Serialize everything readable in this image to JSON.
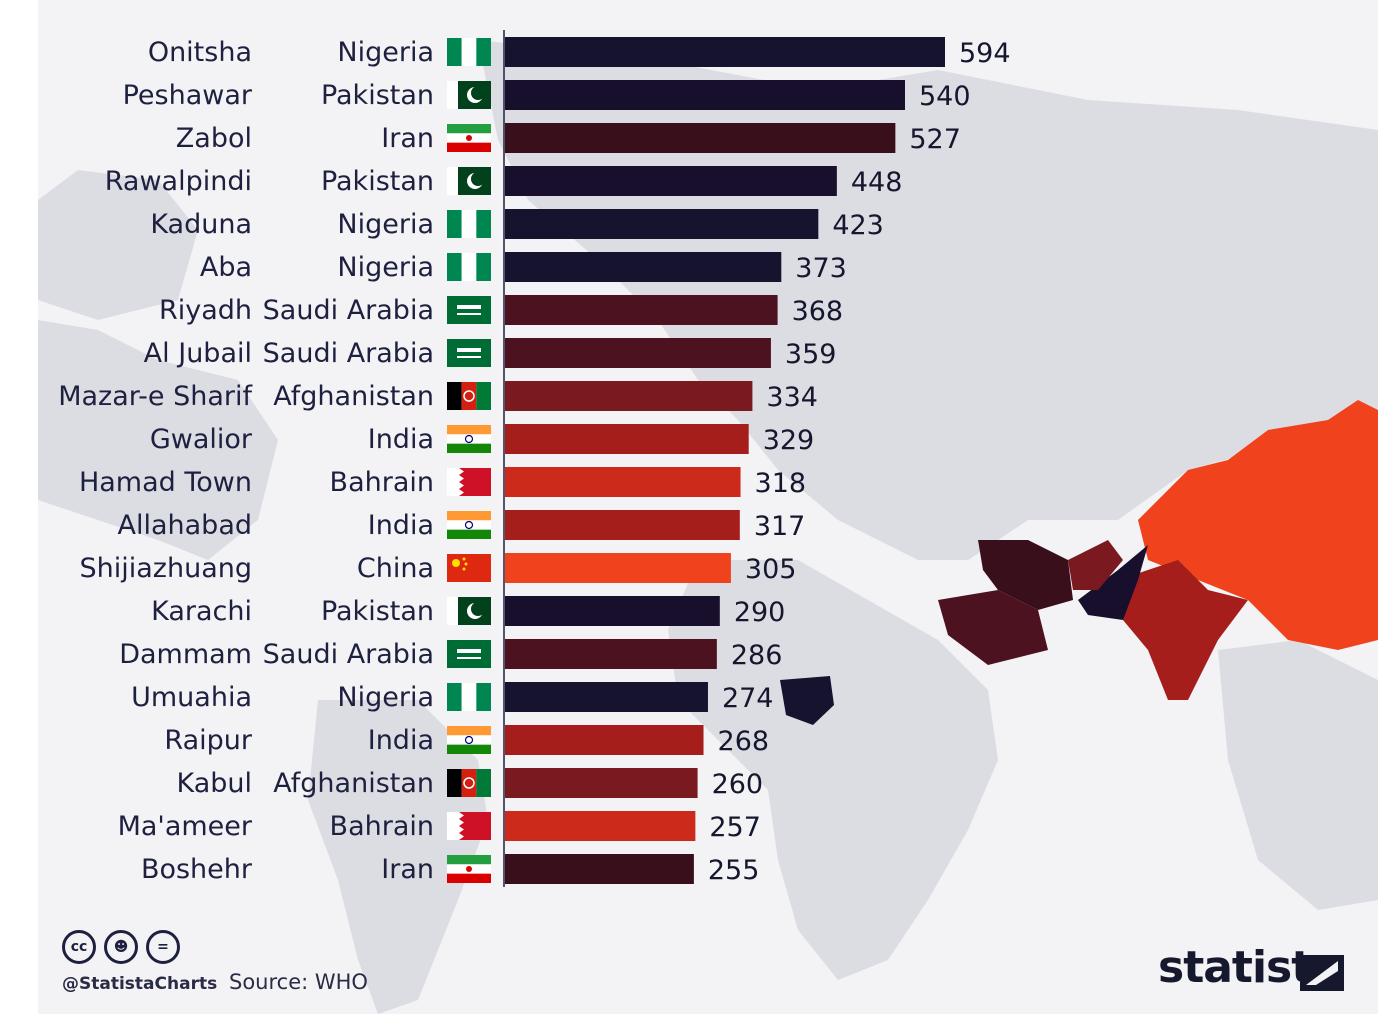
{
  "chart_data": {
    "type": "bar",
    "orientation": "horizontal",
    "xlim": [
      0,
      594
    ],
    "categories": [
      "Onitsha",
      "Peshawar",
      "Zabol",
      "Rawalpindi",
      "Kaduna",
      "Aba",
      "Riyadh",
      "Al Jubail",
      "Mazar-e Sharif",
      "Gwalior",
      "Hamad Town",
      "Allahabad",
      "Shijiazhuang",
      "Karachi",
      "Dammam",
      "Umuahia",
      "Raipur",
      "Kabul",
      "Ma'ameer",
      "Boshehr"
    ],
    "countries": [
      "Nigeria",
      "Pakistan",
      "Iran",
      "Pakistan",
      "Nigeria",
      "Nigeria",
      "Saudi Arabia",
      "Saudi Arabia",
      "Afghanistan",
      "India",
      "Bahrain",
      "India",
      "China",
      "Pakistan",
      "Saudi Arabia",
      "Nigeria",
      "India",
      "Afghanistan",
      "Bahrain",
      "Iran"
    ],
    "values": [
      594,
      540,
      527,
      448,
      423,
      373,
      368,
      359,
      334,
      329,
      318,
      317,
      305,
      290,
      286,
      274,
      268,
      260,
      257,
      255
    ],
    "country_colors": {
      "Nigeria": "#15132e",
      "Pakistan": "#170f2c",
      "Iran": "#3a0f1c",
      "Saudi Arabia": "#4d1220",
      "Afghanistan": "#7a1a20",
      "India": "#a51e1c",
      "Bahrain": "#cc2a1a",
      "China": "#f0421c"
    },
    "flag_icons": {
      "Nigeria": "nigeria-flag-icon",
      "Pakistan": "pakistan-flag-icon",
      "Iran": "iran-flag-icon",
      "Saudi Arabia": "saudi-arabia-flag-icon",
      "Afghanistan": "afghanistan-flag-icon",
      "India": "india-flag-icon",
      "Bahrain": "bahrain-flag-icon",
      "China": "china-flag-icon"
    }
  },
  "footer": {
    "handle": "@StatistaCharts",
    "source": "Source: WHO",
    "license_icons": [
      "cc-icon",
      "attribution-icon",
      "no-derivatives-icon"
    ],
    "brand": "statista"
  }
}
